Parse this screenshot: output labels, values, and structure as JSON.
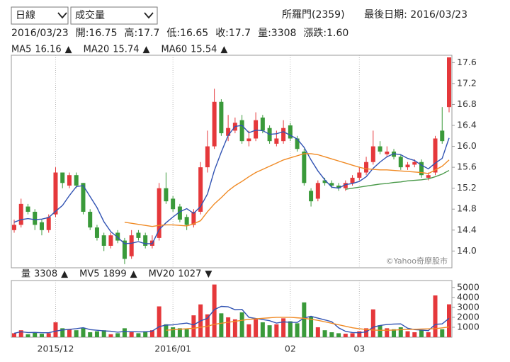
{
  "header": {
    "period": "日線",
    "indicator": "成交量",
    "stock": "所羅門(2359)",
    "last_date": "最後日期: 2016/03/23"
  },
  "info": [
    "2016/03/23",
    "開:16.75",
    "高:17.7",
    "低:16.65",
    "收:17.7",
    "量:3308",
    "漲跌:1.60"
  ],
  "chart_data": [
    {
      "type": "candlestick",
      "up_color": "#e5383b",
      "down_color": "#3a9a3a",
      "open": [
        14.4,
        14.5,
        14.85,
        14.75,
        14.55,
        14.4,
        14.7,
        15.5,
        15.25,
        15.45,
        15.3,
        14.75,
        14.45,
        14.3,
        14.1,
        14.35,
        14.2,
        13.9,
        14.35,
        14.3,
        14.1,
        14.25,
        15.2,
        15.0,
        14.85,
        14.65,
        14.5,
        14.75,
        15.6,
        16.0,
        16.85,
        16.2,
        16.3,
        16.5,
        16.1,
        16.15,
        16.55,
        16.35,
        16.05,
        16.1,
        16.4,
        16.15,
        15.9,
        15.15,
        15.0,
        15.35,
        15.3,
        15.25,
        15.2,
        15.3,
        15.4,
        15.5,
        15.7,
        16.0,
        15.85,
        15.9,
        15.8,
        15.6,
        15.65,
        15.7,
        15.4,
        15.5,
        16.3,
        16.75
      ],
      "high": [
        14.6,
        15.0,
        14.9,
        14.8,
        14.6,
        14.7,
        15.6,
        15.5,
        15.5,
        15.5,
        15.3,
        14.8,
        14.5,
        14.35,
        14.35,
        14.4,
        14.25,
        14.4,
        14.4,
        14.35,
        14.3,
        15.3,
        15.5,
        15.05,
        14.9,
        14.7,
        14.8,
        15.7,
        16.3,
        17.1,
        16.9,
        16.6,
        16.55,
        16.6,
        16.3,
        16.65,
        16.6,
        16.4,
        16.3,
        16.5,
        16.45,
        16.2,
        15.95,
        15.2,
        15.35,
        15.4,
        15.35,
        15.3,
        15.35,
        15.45,
        15.6,
        15.8,
        16.3,
        16.1,
        16.0,
        15.95,
        15.85,
        15.7,
        15.75,
        15.75,
        15.5,
        16.2,
        16.75,
        17.7
      ],
      "low": [
        14.35,
        14.45,
        14.7,
        14.4,
        14.3,
        14.35,
        14.65,
        15.2,
        15.2,
        15.2,
        14.7,
        14.4,
        14.2,
        14.0,
        14.05,
        14.15,
        13.75,
        13.85,
        14.2,
        14.05,
        14.05,
        14.2,
        14.9,
        14.75,
        14.55,
        14.4,
        14.45,
        14.7,
        15.5,
        15.95,
        16.2,
        16.1,
        16.25,
        16.05,
        16.0,
        16.1,
        16.25,
        16.05,
        16.0,
        16.05,
        16.1,
        15.9,
        15.25,
        14.85,
        14.95,
        15.25,
        15.2,
        15.15,
        15.15,
        15.25,
        15.35,
        15.45,
        15.65,
        15.85,
        15.8,
        15.75,
        15.55,
        15.55,
        15.6,
        15.4,
        15.35,
        15.45,
        16.05,
        16.65
      ],
      "close": [
        14.5,
        14.9,
        14.75,
        14.5,
        14.4,
        14.65,
        15.5,
        15.3,
        15.45,
        15.25,
        14.75,
        14.45,
        14.25,
        14.1,
        14.3,
        14.2,
        13.85,
        14.3,
        14.25,
        14.1,
        14.2,
        15.2,
        14.95,
        14.8,
        14.6,
        14.5,
        14.75,
        15.6,
        16.0,
        16.85,
        16.25,
        16.35,
        16.45,
        16.1,
        16.15,
        16.5,
        16.3,
        16.1,
        16.15,
        16.35,
        16.15,
        15.95,
        15.3,
        14.95,
        15.3,
        15.3,
        15.25,
        15.2,
        15.3,
        15.4,
        15.5,
        15.7,
        16.0,
        15.9,
        15.9,
        15.8,
        15.6,
        15.65,
        15.7,
        15.45,
        15.45,
        16.15,
        16.1,
        17.7
      ],
      "series": [
        {
          "name": "MA5",
          "color": "#3153b3",
          "value": 16.16,
          "trend": "▲",
          "trend_color": "#e5383b",
          "values": [
            14.55,
            14.6,
            14.62,
            14.6,
            14.61,
            14.64,
            14.76,
            14.87,
            15.06,
            15.23,
            15.25,
            15.04,
            14.83,
            14.56,
            14.37,
            14.26,
            14.14,
            14.15,
            14.18,
            14.14,
            14.14,
            14.41,
            14.54,
            14.65,
            14.75,
            14.81,
            14.72,
            14.85,
            15.09,
            15.54,
            15.89,
            16.21,
            16.38,
            16.4,
            16.26,
            16.31,
            16.3,
            16.23,
            16.24,
            16.28,
            16.21,
            16.14,
            15.98,
            15.74,
            15.53,
            15.36,
            15.22,
            15.2,
            15.27,
            15.29,
            15.33,
            15.42,
            15.58,
            15.7,
            15.8,
            15.86,
            15.84,
            15.77,
            15.73,
            15.64,
            15.57,
            15.68,
            15.77,
            16.16
          ]
        },
        {
          "name": "MA20",
          "color": "#f08a24",
          "value": 15.74,
          "trend": "▲",
          "trend_color": "#e5383b",
          "values": [
            null,
            null,
            null,
            null,
            null,
            null,
            null,
            null,
            null,
            null,
            null,
            null,
            null,
            null,
            null,
            null,
            14.55,
            14.53,
            14.51,
            14.49,
            14.47,
            14.49,
            14.5,
            14.5,
            14.49,
            14.48,
            14.52,
            14.58,
            14.75,
            14.9,
            15.02,
            15.15,
            15.25,
            15.33,
            15.42,
            15.5,
            15.56,
            15.62,
            15.68,
            15.74,
            15.78,
            15.82,
            15.86,
            15.86,
            15.84,
            15.8,
            15.76,
            15.72,
            15.68,
            15.64,
            15.6,
            15.57,
            15.56,
            15.55,
            15.55,
            15.54,
            15.53,
            15.52,
            15.51,
            15.5,
            15.48,
            15.55,
            15.62,
            15.74
          ]
        },
        {
          "name": "MA60",
          "color": "#4a9a4a",
          "value": 15.54,
          "trend": "▲",
          "trend_color": "#e5383b",
          "values": [
            null,
            null,
            null,
            null,
            null,
            null,
            null,
            null,
            null,
            null,
            null,
            null,
            null,
            null,
            null,
            null,
            null,
            null,
            null,
            null,
            null,
            null,
            null,
            null,
            null,
            null,
            null,
            null,
            null,
            null,
            null,
            null,
            null,
            null,
            null,
            null,
            null,
            null,
            null,
            null,
            null,
            null,
            null,
            null,
            null,
            null,
            null,
            null,
            15.18,
            15.2,
            15.22,
            15.24,
            15.26,
            15.28,
            15.29,
            15.31,
            15.32,
            15.34,
            15.35,
            15.36,
            15.38,
            15.42,
            15.47,
            15.54
          ]
        }
      ],
      "ylim": [
        13.68,
        17.74
      ],
      "yticks": [
        {
          "value": 14,
          "label": "14.0"
        },
        14.4,
        14.8,
        15.2,
        15.6,
        {
          "value": 16,
          "label": "16.0"
        },
        16.4,
        16.8,
        17.2,
        17.6
      ],
      "watermark": "©Yahoo奇摩股市"
    },
    {
      "type": "bar",
      "name": "量",
      "value": 3308,
      "trend": "▲",
      "trend_color": "#e5383b",
      "categories": [
        null,
        null,
        null,
        null,
        null,
        null,
        "2015/12",
        null,
        null,
        null,
        null,
        null,
        null,
        null,
        null,
        null,
        null,
        null,
        null,
        null,
        null,
        null,
        null,
        "2016/01",
        null,
        null,
        null,
        null,
        null,
        null,
        null,
        null,
        null,
        null,
        null,
        null,
        null,
        null,
        null,
        null,
        "02",
        null,
        null,
        null,
        null,
        null,
        null,
        null,
        null,
        null,
        "03",
        null,
        null,
        null,
        null,
        null,
        null,
        null,
        null,
        null,
        null,
        null,
        null,
        null
      ],
      "values": [
        400,
        700,
        300,
        500,
        350,
        400,
        1500,
        900,
        800,
        700,
        900,
        500,
        600,
        700,
        300,
        400,
        900,
        500,
        400,
        600,
        700,
        3100,
        1300,
        1000,
        900,
        800,
        2200,
        3300,
        2300,
        5300,
        2400,
        2000,
        1800,
        2500,
        1300,
        1800,
        1500,
        1200,
        1300,
        1900,
        1600,
        1400,
        3500,
        2100,
        1000,
        700,
        500,
        400,
        350,
        400,
        600,
        900,
        2800,
        1200,
        900,
        800,
        1000,
        600,
        500,
        700,
        500,
        4200,
        800,
        3308
      ],
      "series": [
        {
          "name": "MV5",
          "color": "#3153b3",
          "value": 1899,
          "trend": "▲",
          "trend_color": "#e5383b",
          "values": [
            400,
            550,
            470,
            480,
            450,
            450,
            610,
            730,
            790,
            860,
            960,
            760,
            700,
            640,
            600,
            500,
            580,
            560,
            540,
            540,
            620,
            1060,
            1220,
            1240,
            1340,
            1420,
            1240,
            1640,
            1900,
            2780,
            3100,
            3060,
            2760,
            2800,
            2000,
            1880,
            1780,
            1660,
            1420,
            1540,
            1500,
            1480,
            1940,
            2100,
            1920,
            1740,
            1560,
            940,
            590,
            470,
            450,
            530,
            1010,
            1180,
            1280,
            1320,
            1340,
            900,
            760,
            720,
            660,
            1300,
            1340,
            1899
          ]
        },
        {
          "name": "MV20",
          "color": "#f08a24",
          "value": 1027,
          "trend": "▼",
          "trend_color": "#2e9e3e",
          "values": [
            null,
            null,
            null,
            null,
            null,
            null,
            null,
            null,
            null,
            null,
            null,
            null,
            null,
            null,
            null,
            null,
            null,
            null,
            null,
            null,
            null,
            null,
            700,
            750,
            800,
            850,
            900,
            1000,
            1100,
            1300,
            1400,
            1500,
            1600,
            1700,
            1800,
            1850,
            1900,
            1950,
            2000,
            2000,
            2000,
            1950,
            1900,
            1800,
            1700,
            1550,
            1400,
            1250,
            1100,
            950,
            850,
            780,
            720,
            700,
            700,
            720,
            750,
            780,
            800,
            820,
            840,
            860,
            940,
            1027
          ]
        }
      ],
      "ylim": [
        0,
        5700
      ],
      "yticks": [
        1000,
        2000,
        3000,
        4000,
        5000
      ]
    }
  ]
}
